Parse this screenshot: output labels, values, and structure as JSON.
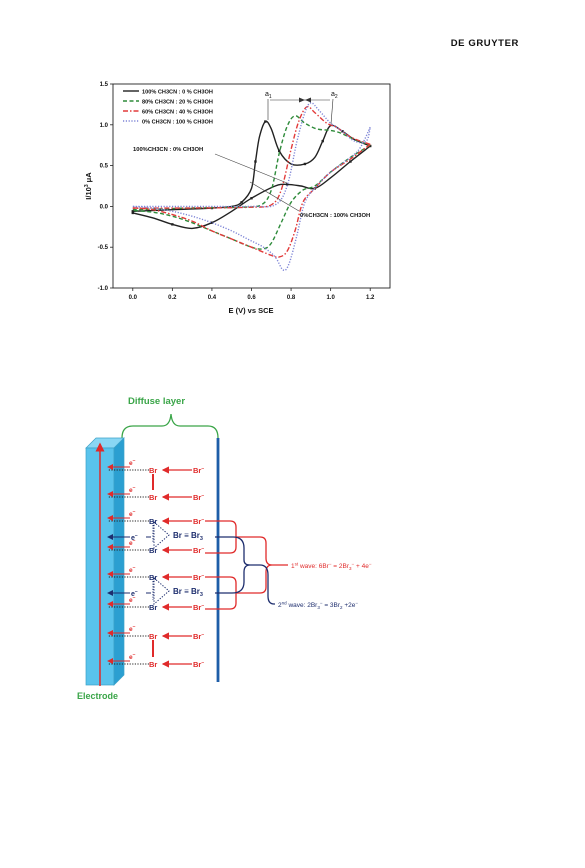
{
  "header": {
    "publisher": "DE GRUYTER"
  },
  "chart_data": {
    "type": "line",
    "xlabel": "E (V) vs SCE",
    "ylabel": "I/10",
    "ylabel_sup": "3",
    "ylabel_unit": " μA",
    "xlim": [
      -0.1,
      1.3
    ],
    "ylim": [
      -1.0,
      1.5
    ],
    "xticks": [
      "0.0",
      "0.2",
      "0.4",
      "0.6",
      "0.8",
      "1.0",
      "1.2"
    ],
    "xtick_values": [
      0.0,
      0.2,
      0.4,
      0.6,
      0.8,
      1.0,
      1.2
    ],
    "yticks": [
      "-1.0",
      "-0.5",
      "0.0",
      "0.5",
      "1.0",
      "1.5"
    ],
    "ytick_values": [
      -1.0,
      -0.5,
      0.0,
      0.5,
      1.0,
      1.5
    ],
    "legend_position": "top-left",
    "grid": false,
    "annotations": {
      "a1": "a",
      "a1_sub": "1",
      "a2": "a",
      "a2_sub": "2",
      "left_note": "100%CH3CN : 0% CH3OH",
      "right_note": "0%CH3CN : 100% CH3OH"
    },
    "series": [
      {
        "name": "100% CH3CN : 0 % CH3OH",
        "color": "#222222",
        "style": "solid",
        "forward": [
          [
            0.0,
            -0.06
          ],
          [
            0.2,
            -0.04
          ],
          [
            0.4,
            -0.02
          ],
          [
            0.5,
            0.0
          ],
          [
            0.55,
            0.05
          ],
          [
            0.6,
            0.22
          ],
          [
            0.62,
            0.55
          ],
          [
            0.64,
            0.85
          ],
          [
            0.67,
            1.04
          ],
          [
            0.7,
            0.95
          ],
          [
            0.74,
            0.68
          ],
          [
            0.8,
            0.52
          ],
          [
            0.87,
            0.52
          ],
          [
            0.92,
            0.6
          ],
          [
            0.96,
            0.8
          ],
          [
            1.0,
            0.99
          ],
          [
            1.06,
            0.92
          ],
          [
            1.12,
            0.82
          ],
          [
            1.2,
            0.74
          ]
        ],
        "reverse": [
          [
            1.2,
            0.74
          ],
          [
            1.1,
            0.55
          ],
          [
            1.0,
            0.35
          ],
          [
            0.92,
            0.22
          ],
          [
            0.85,
            0.25
          ],
          [
            0.78,
            0.27
          ],
          [
            0.72,
            0.25
          ],
          [
            0.6,
            0.1
          ],
          [
            0.5,
            -0.06
          ],
          [
            0.4,
            -0.2
          ],
          [
            0.3,
            -0.27
          ],
          [
            0.2,
            -0.22
          ],
          [
            0.1,
            -0.14
          ],
          [
            0.0,
            -0.08
          ]
        ]
      },
      {
        "name": "80% CH3CN : 20 % CH3OH",
        "color": "#2e8b3a",
        "style": "dash",
        "forward": [
          [
            0.0,
            -0.04
          ],
          [
            0.3,
            -0.02
          ],
          [
            0.55,
            -0.01
          ],
          [
            0.65,
            0.02
          ],
          [
            0.7,
            0.2
          ],
          [
            0.74,
            0.65
          ],
          [
            0.78,
            0.98
          ],
          [
            0.82,
            1.11
          ],
          [
            0.87,
            1.02
          ],
          [
            0.93,
            0.95
          ],
          [
            1.0,
            0.93
          ],
          [
            1.05,
            0.9
          ],
          [
            1.12,
            0.82
          ],
          [
            1.2,
            0.75
          ]
        ],
        "reverse": [
          [
            1.2,
            0.75
          ],
          [
            1.1,
            0.6
          ],
          [
            1.0,
            0.42
          ],
          [
            0.92,
            0.25
          ],
          [
            0.86,
            0.2
          ],
          [
            0.8,
            0.05
          ],
          [
            0.75,
            -0.2
          ],
          [
            0.7,
            -0.45
          ],
          [
            0.66,
            -0.52
          ],
          [
            0.6,
            -0.5
          ],
          [
            0.5,
            -0.4
          ],
          [
            0.4,
            -0.3
          ],
          [
            0.3,
            -0.2
          ],
          [
            0.2,
            -0.12
          ],
          [
            0.1,
            -0.07
          ],
          [
            0.0,
            -0.05
          ]
        ]
      },
      {
        "name": "60% CH3CN : 40 % CH3OH",
        "color": "#e23a3a",
        "style": "dashdot",
        "forward": [
          [
            0.0,
            -0.02
          ],
          [
            0.3,
            -0.02
          ],
          [
            0.6,
            -0.01
          ],
          [
            0.7,
            0.02
          ],
          [
            0.75,
            0.2
          ],
          [
            0.8,
            0.7
          ],
          [
            0.84,
            1.05
          ],
          [
            0.88,
            1.22
          ],
          [
            0.92,
            1.15
          ],
          [
            0.98,
            1.02
          ],
          [
            1.03,
            0.97
          ],
          [
            1.1,
            0.85
          ],
          [
            1.2,
            0.76
          ]
        ],
        "reverse": [
          [
            1.2,
            0.76
          ],
          [
            1.1,
            0.58
          ],
          [
            1.0,
            0.42
          ],
          [
            0.92,
            0.22
          ],
          [
            0.86,
            0.05
          ],
          [
            0.82,
            -0.3
          ],
          [
            0.78,
            -0.55
          ],
          [
            0.74,
            -0.62
          ],
          [
            0.7,
            -0.6
          ],
          [
            0.6,
            -0.5
          ],
          [
            0.5,
            -0.4
          ],
          [
            0.4,
            -0.3
          ],
          [
            0.3,
            -0.18
          ],
          [
            0.2,
            -0.1
          ],
          [
            0.1,
            -0.04
          ],
          [
            0.0,
            -0.02
          ]
        ]
      },
      {
        "name": "0% CH3CN : 100 % CH3OH",
        "color": "#7d84d6",
        "style": "dot",
        "forward": [
          [
            0.0,
            0.0
          ],
          [
            0.3,
            0.0
          ],
          [
            0.6,
            0.0
          ],
          [
            0.72,
            0.02
          ],
          [
            0.78,
            0.25
          ],
          [
            0.83,
            0.8
          ],
          [
            0.87,
            1.15
          ],
          [
            0.9,
            1.27
          ],
          [
            0.94,
            1.18
          ],
          [
            1.0,
            1.02
          ],
          [
            1.06,
            0.92
          ],
          [
            1.12,
            0.8
          ],
          [
            1.18,
            0.8
          ],
          [
            1.2,
            0.97
          ]
        ],
        "reverse": [
          [
            1.2,
            0.97
          ],
          [
            1.15,
            0.72
          ],
          [
            1.1,
            0.6
          ],
          [
            1.0,
            0.42
          ],
          [
            0.93,
            0.25
          ],
          [
            0.87,
            0.05
          ],
          [
            0.83,
            -0.35
          ],
          [
            0.79,
            -0.7
          ],
          [
            0.76,
            -0.78
          ],
          [
            0.72,
            -0.62
          ],
          [
            0.66,
            -0.5
          ],
          [
            0.58,
            -0.4
          ],
          [
            0.5,
            -0.3
          ],
          [
            0.4,
            -0.2
          ],
          [
            0.3,
            -0.12
          ],
          [
            0.2,
            -0.06
          ],
          [
            0.1,
            -0.02
          ],
          [
            0.0,
            0.0
          ]
        ]
      }
    ]
  },
  "diagram": {
    "title": "Diffuse layer",
    "electrode_label": "Electrode",
    "e_label": "e",
    "e_sup": "−",
    "br_label": "Br",
    "br_minus_label": "Br",
    "br_minus_sup": "−",
    "br3_text": "Br ≡ Br",
    "br3_sub": "3",
    "wave1_label": "1",
    "wave1_sup": "st",
    "wave1_text": " wave: 6Br",
    "wave1_sup2": "−",
    "wave1_tail": " = 2Br",
    "wave1_sub3": "3",
    "wave1_sup3": "−",
    "wave1_end": " + 4e",
    "wave1_sup4": "−",
    "wave2_label": "2",
    "wave2_sup": "nd",
    "wave2_text": " wave: 2Br",
    "wave2_sub": "3",
    "wave2_sup2": "−",
    "wave2_tail": " = 3Br",
    "wave2_sub2": "2",
    "wave2_end": " +2e",
    "wave2_sup3": "−",
    "colors": {
      "red": "#e02a2a",
      "navy": "#1e2e6e",
      "green": "#3aa548",
      "electrode": "#59c3ec",
      "membrane": "#1e5ea8"
    }
  }
}
